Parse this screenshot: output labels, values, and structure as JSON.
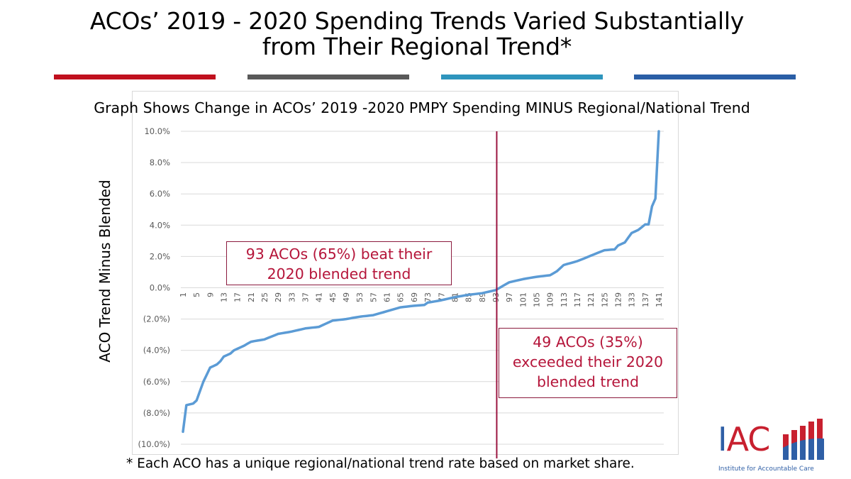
{
  "slide": {
    "title_line1": "ACOs’ 2019 - 2020 Spending Trends Varied Substantially",
    "title_line2": "from Their Regional Trend*",
    "accent_bars": [
      "#c0101e",
      "#595959",
      "#2e95bd",
      "#2a5ea6"
    ],
    "subtitle": "Graph Shows Change in ACOs’ 2019 -2020 PMPY Spending MINUS Regional/National Trend",
    "callout_beat_line1": "93 ACOs (65%) beat their",
    "callout_beat_line2": "2020 blended trend",
    "callout_exceed_line1": "49 ACOs (35%)",
    "callout_exceed_line2": "exceeded their 2020",
    "callout_exceed_line3": "blended trend",
    "footnote": "* Each ACO has a unique regional/national trend rate based on market share.",
    "logo": {
      "letter_i": "I",
      "letters_ac": "AC",
      "tagline": "Institute for Accountable Care",
      "red": "#c8202f",
      "blue": "#2f5fa6"
    }
  },
  "chart_data": {
    "type": "line",
    "title": "Graph Shows Change in ACOs’ 2019 -2020 PMPY Spending MINUS Regional/National Trend",
    "xlabel": "",
    "ylabel": "ACO Trend Minus Blended",
    "ylim": [
      -10,
      10
    ],
    "y_ticks": [
      10,
      8,
      6,
      4,
      2,
      0,
      -2,
      -4,
      -6,
      -8,
      -10
    ],
    "y_tick_labels": [
      "10.0%",
      "8.0%",
      "6.0%",
      "4.0%",
      "2.0%",
      "0.0%",
      "(2.0%)",
      "(4.0%)",
      "(6.0%)",
      "(8.0%)",
      "(10.0%)"
    ],
    "x_range": [
      1,
      141
    ],
    "x_tick_labels": [
      "1",
      "5",
      "9",
      "13",
      "17",
      "21",
      "25",
      "29",
      "33",
      "37",
      "41",
      "45",
      "49",
      "53",
      "57",
      "61",
      "65",
      "69",
      "73",
      "77",
      "81",
      "85",
      "89",
      "93",
      "97",
      "101",
      "105",
      "109",
      "113",
      "117",
      "121",
      "125",
      "129",
      "133",
      "137",
      "141"
    ],
    "grid": true,
    "legend": "none",
    "line_color": "#5b9bd5",
    "divider": {
      "x": 93,
      "color": "#9b1540"
    },
    "series": [
      {
        "name": "ACO Trend Minus Blended (%)",
        "anchors_x": [
          1,
          2,
          4,
          5,
          7,
          9,
          11,
          12,
          13,
          15,
          16,
          19,
          21,
          25,
          29,
          33,
          37,
          41,
          45,
          49,
          53,
          57,
          61,
          65,
          69,
          72,
          73,
          77,
          81,
          85,
          89,
          93,
          97,
          101,
          105,
          109,
          111,
          113,
          117,
          121,
          125,
          128,
          129,
          131,
          133,
          135,
          137,
          138,
          139,
          140,
          141
        ],
        "anchors_y": [
          -9.2,
          -7.5,
          -7.4,
          -7.2,
          -6.0,
          -5.1,
          -4.9,
          -4.7,
          -4.4,
          -4.2,
          -4.0,
          -3.7,
          -3.45,
          -3.3,
          -2.95,
          -2.8,
          -2.6,
          -2.5,
          -2.1,
          -2.0,
          -1.85,
          -1.75,
          -1.5,
          -1.25,
          -1.15,
          -1.1,
          -0.95,
          -0.8,
          -0.6,
          -0.45,
          -0.35,
          -0.15,
          0.35,
          0.55,
          0.7,
          0.8,
          1.05,
          1.45,
          1.7,
          2.05,
          2.4,
          2.45,
          2.7,
          2.9,
          3.5,
          3.7,
          4.05,
          4.05,
          5.2,
          5.7,
          10.0
        ]
      }
    ],
    "annotations": [
      "93 ACOs (65%) beat their 2020 blended trend",
      "49 ACOs (35%) exceeded their 2020 blended trend"
    ]
  }
}
